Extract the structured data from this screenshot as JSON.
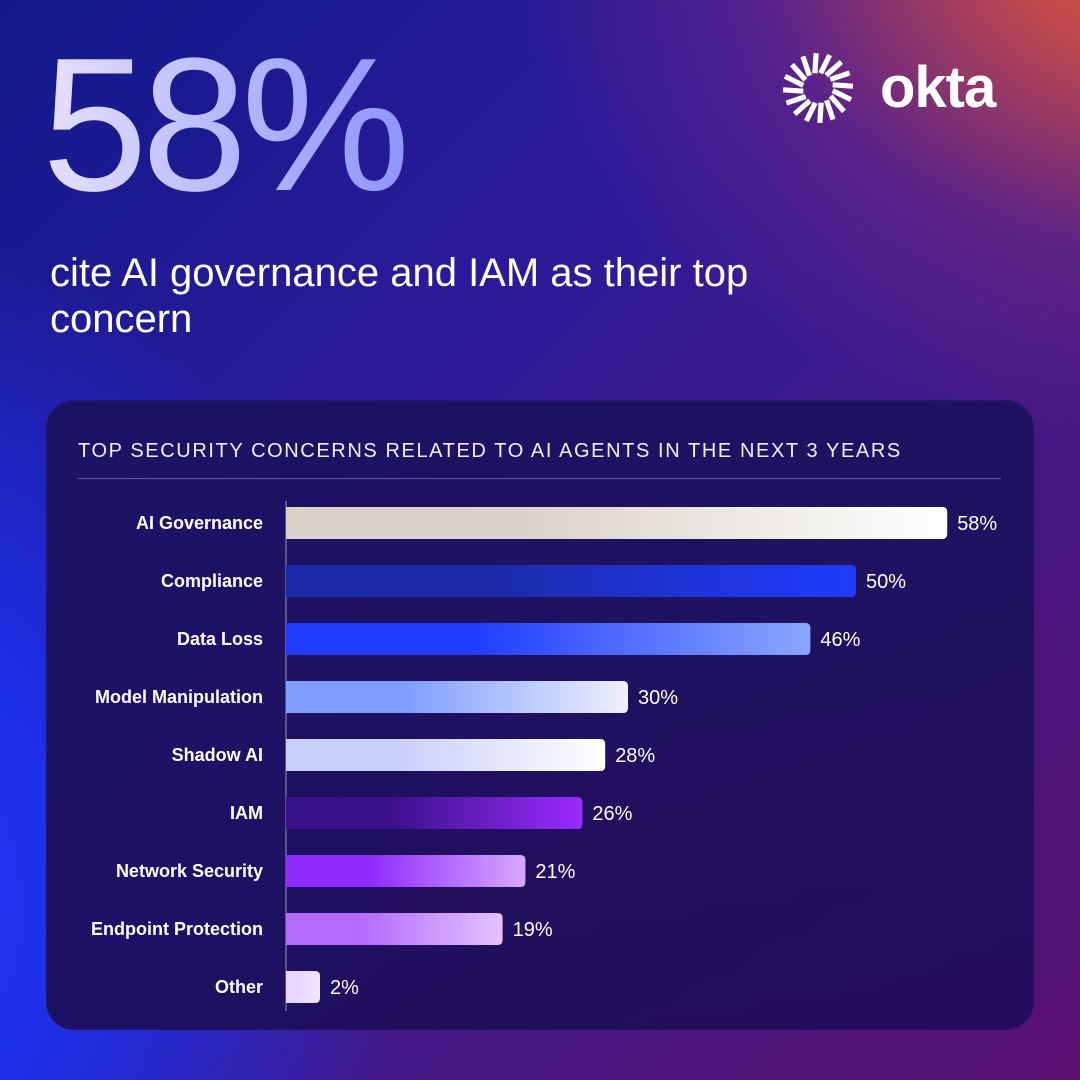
{
  "headline": {
    "stat": "58%",
    "subtitle": "cite AI governance and IAM as their top concern"
  },
  "brand": {
    "name": "okta",
    "icon": "okta-sunburst-icon"
  },
  "chart_data": {
    "type": "bar",
    "orientation": "horizontal",
    "title": "TOP SECURITY CONCERNS RELATED TO AI AGENTS IN THE NEXT 3 YEARS",
    "categories": [
      "AI Governance",
      "Compliance",
      "Data Loss",
      "Model Manipulation",
      "Shadow AI",
      "IAM",
      "Network Security",
      "Endpoint Protection",
      "Other"
    ],
    "values": [
      58,
      50,
      46,
      30,
      28,
      26,
      21,
      19,
      2
    ],
    "value_labels": [
      "58%",
      "50%",
      "46%",
      "30%",
      "28%",
      "26%",
      "21%",
      "19%",
      "2%"
    ],
    "unit": "%",
    "grid": false,
    "bar_gradients": [
      [
        "#d9d2c8",
        "#ffffff"
      ],
      [
        "#1c2aa8",
        "#1f3cff"
      ],
      [
        "#1f3cff",
        "#8ba6ff"
      ],
      [
        "#7f9dff",
        "#eef0ff"
      ],
      [
        "#c9cffb",
        "#ffffff"
      ],
      [
        "#3a0f8a",
        "#9a2bff"
      ],
      [
        "#8f2bff",
        "#d7a9ff"
      ],
      [
        "#b46bff",
        "#e4c3ff"
      ],
      [
        "#e8d6ff",
        "#f2e8ff"
      ]
    ]
  }
}
